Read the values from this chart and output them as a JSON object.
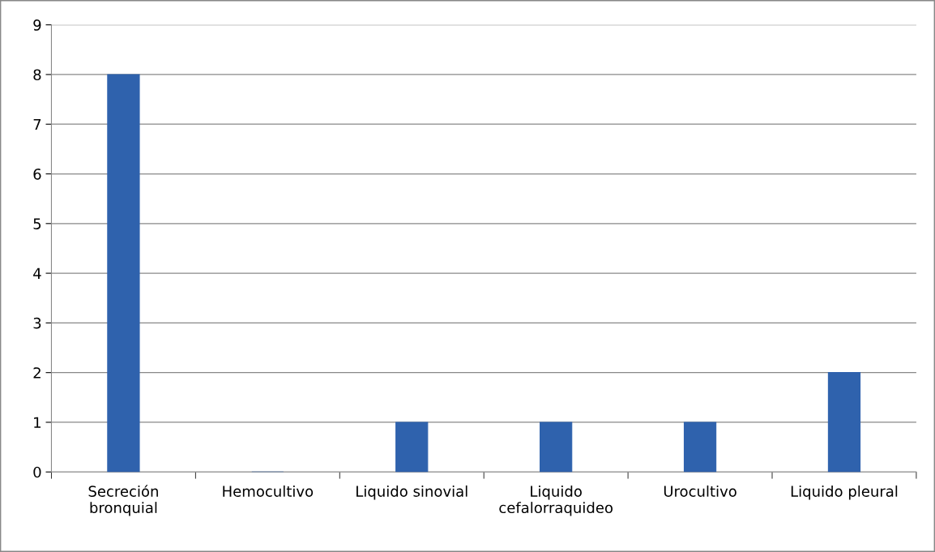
{
  "chart_data": {
    "type": "bar",
    "categories": [
      "Secreción\nbronquial",
      "Hemocultivo",
      "Liquido sinovial",
      "Liquido\ncefalorraquideo",
      "Urocultivo",
      "Liquido pleural"
    ],
    "values": [
      8,
      0,
      1,
      1,
      1,
      2
    ],
    "color": "#2f62ad",
    "ylim": [
      0,
      9
    ],
    "yticks": [
      0,
      1,
      2,
      3,
      4,
      5,
      6,
      7,
      8,
      9
    ],
    "grid": "y",
    "legend": false
  }
}
